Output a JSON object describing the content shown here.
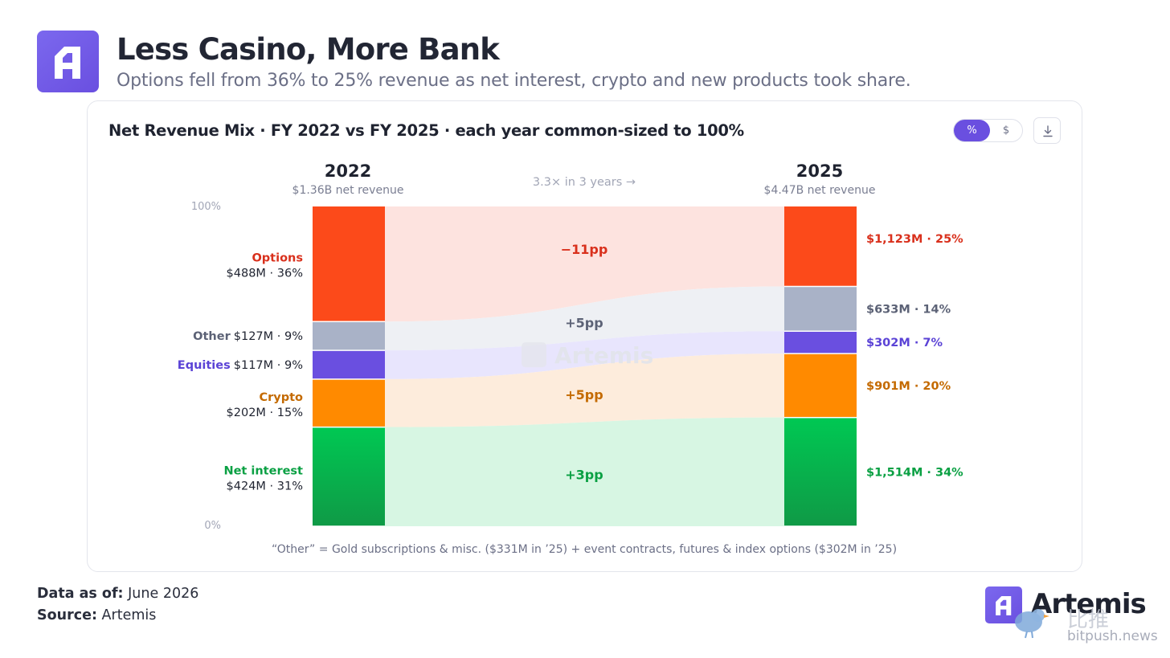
{
  "header": {
    "title": "Less Casino, More Bank",
    "subtitle": "Options fell from 36% to 25% revenue as net interest, crypto and new products took share."
  },
  "card": {
    "title": "Net Revenue Mix · FY 2022 vs FY 2025 · each year common-sized to 100%",
    "toggle_pct": "%",
    "toggle_usd": "$",
    "watermark": "Artemis"
  },
  "chart_data": {
    "type": "bar",
    "subtype": "stacked-100-percent-with-flows",
    "ylim": [
      0,
      100
    ],
    "y_ticks": [
      "100%",
      "0%"
    ],
    "middle_label": "3.3× in 3 years →",
    "footnote": "“Other” = Gold subscriptions & misc. ($331M in ’25) + event contracts, futures & index options ($302M in ’25)",
    "columns": [
      {
        "year": "2022",
        "caption": "$1.36B net revenue"
      },
      {
        "year": "2025",
        "caption": "$4.47B net revenue"
      }
    ],
    "segments": [
      {
        "name": "Options",
        "color": "#fc4a1a",
        "color_dark": "#fc4a1a",
        "label_color": "#d9301c",
        "v2022": 36,
        "v2025": 25,
        "text2022": "$488M · 36%",
        "text2025": "$1,123M · 25%",
        "flow": "−11pp",
        "flow_color": "#fde3df",
        "flow_text_color": "#d9301c"
      },
      {
        "name": "Other",
        "color": "#a9b2c7",
        "color_dark": "#a9b2c7",
        "label_color": "#5c6276",
        "v2022": 9,
        "v2025": 14,
        "text2022": "$127M · 9%",
        "text2025": "$633M · 14%",
        "flow": "+5pp",
        "flow_color": "#eef0f4",
        "flow_text_color": "#5c6276"
      },
      {
        "name": "Equities",
        "color": "#6a4fe0",
        "color_dark": "#6a4fe0",
        "label_color": "#5b43d6",
        "v2022": 9,
        "v2025": 7,
        "text2022": "$117M · 9%",
        "text2025": "$302M · 7%",
        "flow": "",
        "flow_color": "#e8e5fd",
        "flow_text_color": "#5b43d6"
      },
      {
        "name": "Crypto",
        "color": "#ff8a00",
        "color_dark": "#ff8a00",
        "label_color": "#c46a00",
        "v2022": 15,
        "v2025": 20,
        "text2022": "$202M · 15%",
        "text2025": "$901M · 20%",
        "flow": "+5pp",
        "flow_color": "#fdecdc",
        "flow_text_color": "#c46a00"
      },
      {
        "name": "Net interest",
        "color": "#00c853",
        "color_dark": "#0f9a46",
        "label_color": "#0aa043",
        "v2022": 31,
        "v2025": 34,
        "text2022": "$424M · 31%",
        "text2025": "$1,514M · 34%",
        "flow": "+3pp",
        "flow_color": "#d7f6e3",
        "flow_text_color": "#0aa043"
      }
    ]
  },
  "footer": {
    "asof_label": "Data as of:",
    "asof_value": "June 2026",
    "source_label": "Source:",
    "source_value": "Artemis"
  },
  "brand": {
    "name": "Artemis",
    "watermark_cn": "比推",
    "watermark_url": "bitpush.news"
  }
}
